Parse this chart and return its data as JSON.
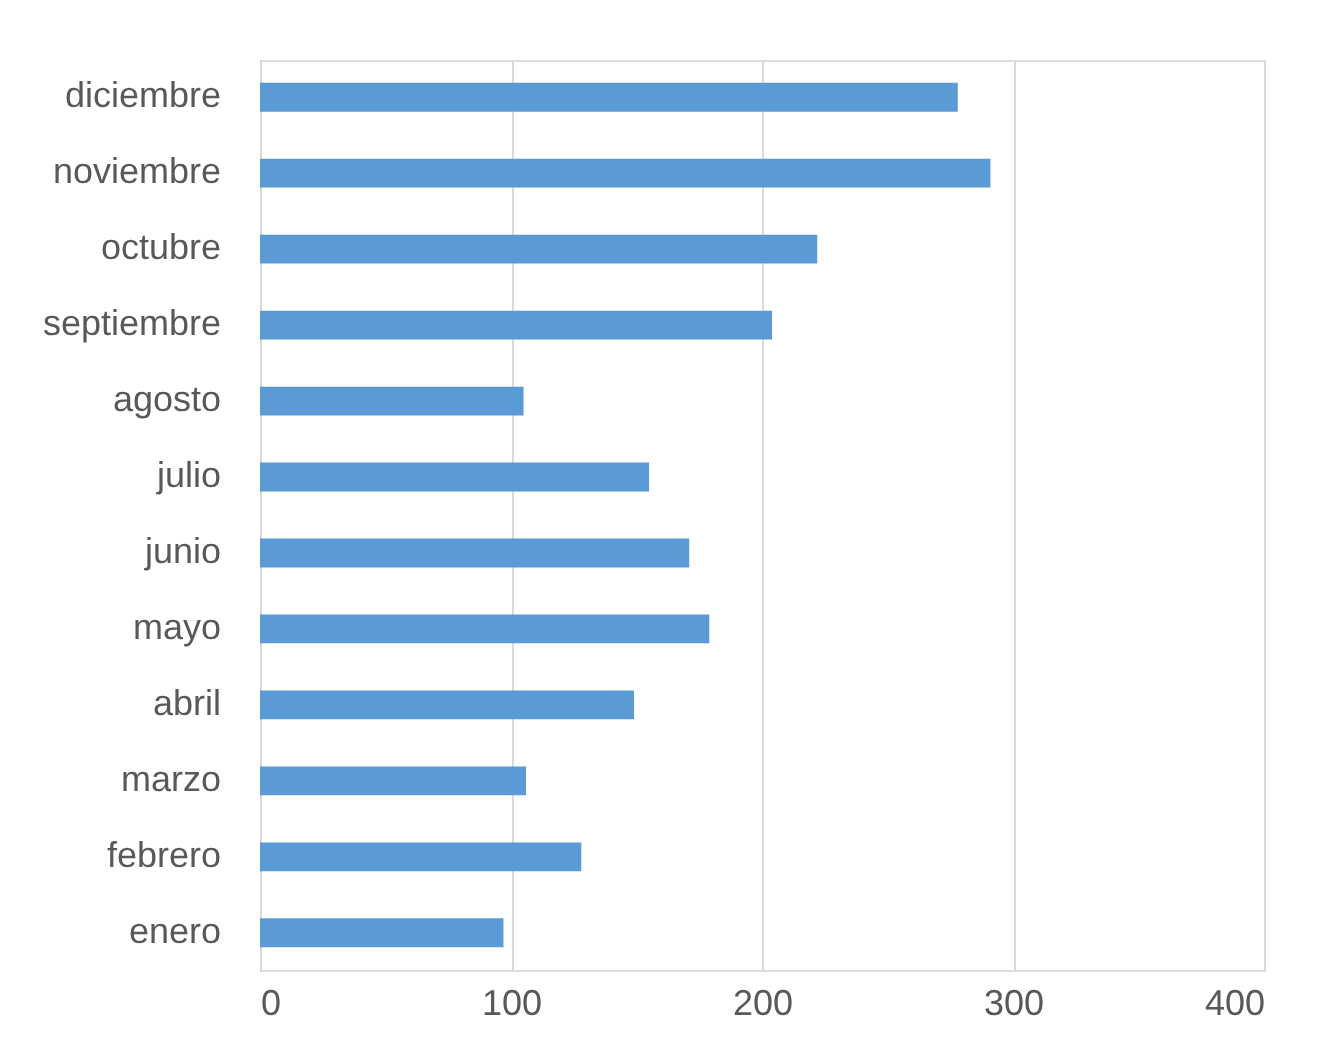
{
  "chart_data": {
    "type": "bar",
    "orientation": "horizontal",
    "categories": [
      "diciembre",
      "noviembre",
      "octubre",
      "septiembre",
      "agosto",
      "julio",
      "junio",
      "mayo",
      "abril",
      "marzo",
      "febrero",
      "enero"
    ],
    "values": [
      278,
      291,
      222,
      204,
      105,
      155,
      171,
      179,
      149,
      106,
      128,
      97
    ],
    "color": "#5b9bd5",
    "xlim": [
      0,
      400
    ],
    "xticks": [
      0,
      100,
      200,
      300,
      400
    ],
    "grid": "x"
  }
}
